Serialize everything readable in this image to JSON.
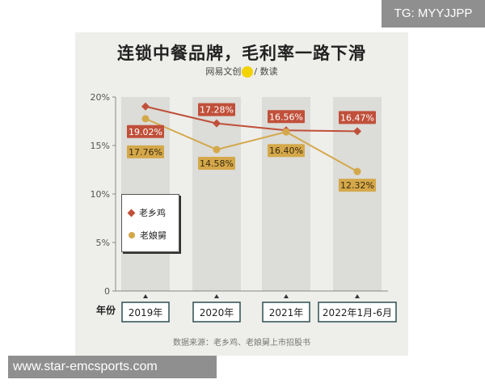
{
  "watermark_top": "TG: MYYJJPP",
  "watermark_bottom": "www.star-emcsports.com",
  "chart_data": {
    "type": "line",
    "title": "连锁中餐品牌，毛利率一路下滑",
    "subtitle_left": "网易文创",
    "subtitle_right": "/ 数读",
    "source": "数据来源：老乡鸡、老娘舅上市招股书",
    "xlabel": "年份",
    "categories": [
      "2019年",
      "2020年",
      "2021年",
      "2022年1月-6月"
    ],
    "yticks": [
      "0",
      "5%",
      "10%",
      "15%",
      "20%"
    ],
    "ylim": [
      0,
      20
    ],
    "grid": false,
    "legend_position": "left-center",
    "series": [
      {
        "name": "老乡鸡",
        "color": "#c0503a",
        "marker": "diamond",
        "values": [
          19.02,
          17.28,
          16.56,
          16.47
        ],
        "labels": [
          "19.02%",
          "17.28%",
          "16.56%",
          "16.47%"
        ]
      },
      {
        "name": "老娘舅",
        "color": "#d4a84a",
        "marker": "circle",
        "values": [
          17.76,
          14.58,
          16.4,
          12.32
        ],
        "labels": [
          "17.76%",
          "14.58%",
          "16.40%",
          "12.32%"
        ]
      }
    ]
  }
}
